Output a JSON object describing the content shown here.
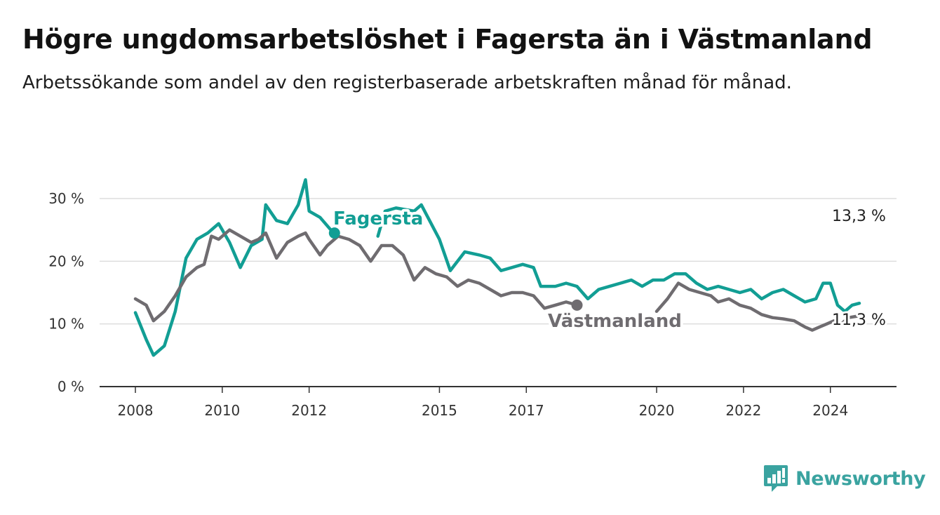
{
  "title": "Högre ungdomsarbetslöshet i Fagersta än i Västmanland",
  "subtitle": "Arbetssökande som andel av den registerbaserade arbetskraften månad för månad.",
  "brand": {
    "name": "Newsworthy",
    "icon": "newsworthy-logo-icon",
    "color": "#3aa3a0"
  },
  "chart_data": {
    "type": "line",
    "x_ticks": [
      "2008",
      "2010",
      "2012",
      "2015",
      "2017",
      "2020",
      "2022",
      "2024"
    ],
    "y_ticks": [
      "0 %",
      "10 %",
      "20 %",
      "30 %"
    ],
    "ylim": [
      0,
      30
    ],
    "xlim": [
      "2008-01",
      "2024-09"
    ],
    "grid": true,
    "legend": "inline labels",
    "series": [
      {
        "name": "Fagersta",
        "color": "#129e94",
        "end_label": "13,3 %",
        "points": [
          [
            "2008-01",
            11.8
          ],
          [
            "2008-04",
            7.5
          ],
          [
            "2008-06",
            5.0
          ],
          [
            "2008-09",
            6.5
          ],
          [
            "2008-12",
            12.0
          ],
          [
            "2009-03",
            20.5
          ],
          [
            "2009-06",
            23.5
          ],
          [
            "2009-09",
            24.5
          ],
          [
            "2009-12",
            26.0
          ],
          [
            "2010-03",
            23.0
          ],
          [
            "2010-06",
            19.0
          ],
          [
            "2010-09",
            22.5
          ],
          [
            "2010-12",
            23.5
          ],
          [
            "2011-01",
            29.0
          ],
          [
            "2011-04",
            26.5
          ],
          [
            "2011-07",
            26.0
          ],
          [
            "2011-10",
            29.0
          ],
          [
            "2011-12",
            33.0
          ],
          [
            "2012-01",
            28.0
          ],
          [
            "2012-04",
            27.0
          ],
          [
            "2012-07",
            25.0
          ],
          [
            "2012-08",
            24.5
          ]
        ]
      },
      {
        "name": "Fagersta",
        "color": "#129e94",
        "points": [
          [
            "2013-08",
            24.0
          ],
          [
            "2013-10",
            28.0
          ],
          [
            "2014-01",
            28.5
          ],
          [
            "2014-06",
            28.0
          ],
          [
            "2014-08",
            29.0
          ],
          [
            "2015-01",
            23.5
          ],
          [
            "2015-04",
            18.5
          ],
          [
            "2015-08",
            21.5
          ],
          [
            "2015-12",
            21.0
          ],
          [
            "2016-03",
            20.5
          ],
          [
            "2016-06",
            18.5
          ],
          [
            "2016-09",
            19.0
          ],
          [
            "2016-12",
            19.5
          ],
          [
            "2017-03",
            19.0
          ],
          [
            "2017-05",
            16.0
          ],
          [
            "2017-09",
            16.0
          ],
          [
            "2017-12",
            16.5
          ],
          [
            "2018-03",
            16.0
          ],
          [
            "2018-06",
            14.0
          ],
          [
            "2018-09",
            15.5
          ],
          [
            "2018-12",
            16.0
          ],
          [
            "2019-03",
            16.5
          ],
          [
            "2019-06",
            17.0
          ],
          [
            "2019-09",
            16.0
          ],
          [
            "2019-12",
            17.0
          ],
          [
            "2020-03",
            17.0
          ],
          [
            "2020-06",
            18.0
          ],
          [
            "2020-09",
            18.0
          ],
          [
            "2020-12",
            16.5
          ],
          [
            "2021-03",
            15.5
          ],
          [
            "2021-06",
            16.0
          ],
          [
            "2021-09",
            15.5
          ],
          [
            "2021-12",
            15.0
          ],
          [
            "2022-03",
            15.5
          ],
          [
            "2022-06",
            14.0
          ],
          [
            "2022-09",
            15.0
          ],
          [
            "2022-12",
            15.5
          ],
          [
            "2023-03",
            14.5
          ],
          [
            "2023-06",
            13.5
          ],
          [
            "2023-09",
            14.0
          ],
          [
            "2023-11",
            16.5
          ],
          [
            "2024-01",
            16.5
          ],
          [
            "2024-03",
            13.0
          ],
          [
            "2024-05",
            12.0
          ],
          [
            "2024-07",
            13.0
          ],
          [
            "2024-09",
            13.3
          ]
        ]
      },
      {
        "name": "Västmanland",
        "color": "#6f6c70",
        "end_label": "11,3 %",
        "points": [
          [
            "2008-01",
            14.0
          ],
          [
            "2008-04",
            13.0
          ],
          [
            "2008-06",
            10.5
          ],
          [
            "2008-09",
            12.0
          ],
          [
            "2008-12",
            14.5
          ],
          [
            "2009-03",
            17.5
          ],
          [
            "2009-06",
            19.0
          ],
          [
            "2009-08",
            19.5
          ],
          [
            "2009-10",
            24.0
          ],
          [
            "2009-12",
            23.5
          ],
          [
            "2010-03",
            25.0
          ],
          [
            "2010-06",
            24.0
          ],
          [
            "2010-09",
            23.0
          ],
          [
            "2010-11",
            23.5
          ],
          [
            "2011-01",
            24.5
          ],
          [
            "2011-04",
            20.5
          ],
          [
            "2011-07",
            23.0
          ],
          [
            "2011-10",
            24.0
          ],
          [
            "2011-12",
            24.5
          ],
          [
            "2012-01",
            23.5
          ],
          [
            "2012-04",
            21.0
          ],
          [
            "2012-06",
            22.5
          ],
          [
            "2012-09",
            24.0
          ],
          [
            "2012-12",
            23.5
          ],
          [
            "2013-03",
            22.5
          ],
          [
            "2013-06",
            20.0
          ],
          [
            "2013-09",
            22.5
          ],
          [
            "2013-12",
            22.5
          ],
          [
            "2014-03",
            21.0
          ],
          [
            "2014-06",
            17.0
          ],
          [
            "2014-09",
            19.0
          ],
          [
            "2014-12",
            18.0
          ],
          [
            "2015-03",
            17.5
          ],
          [
            "2015-06",
            16.0
          ],
          [
            "2015-09",
            17.0
          ],
          [
            "2015-12",
            16.5
          ],
          [
            "2016-03",
            15.5
          ],
          [
            "2016-06",
            14.5
          ],
          [
            "2016-09",
            15.0
          ],
          [
            "2016-12",
            15.0
          ],
          [
            "2017-03",
            14.5
          ],
          [
            "2017-06",
            12.5
          ],
          [
            "2017-09",
            13.0
          ],
          [
            "2017-12",
            13.5
          ],
          [
            "2018-03",
            13.0
          ]
        ]
      },
      {
        "name": "Västmanland",
        "color": "#6f6c70",
        "points": [
          [
            "2020-01",
            12.0
          ],
          [
            "2020-04",
            14.0
          ],
          [
            "2020-07",
            16.5
          ],
          [
            "2020-10",
            15.5
          ],
          [
            "2021-01",
            15.0
          ],
          [
            "2021-04",
            14.5
          ],
          [
            "2021-06",
            13.5
          ],
          [
            "2021-09",
            14.0
          ],
          [
            "2021-12",
            13.0
          ],
          [
            "2022-03",
            12.5
          ],
          [
            "2022-06",
            11.5
          ],
          [
            "2022-09",
            11.0
          ],
          [
            "2022-12",
            10.8
          ],
          [
            "2023-03",
            10.5
          ],
          [
            "2023-06",
            9.5
          ],
          [
            "2023-08",
            9.0
          ],
          [
            "2023-10",
            9.5
          ],
          [
            "2023-12",
            10.0
          ],
          [
            "2024-02",
            10.5
          ],
          [
            "2024-04",
            10.0
          ],
          [
            "2024-06",
            11.0
          ],
          [
            "2024-09",
            11.3
          ]
        ]
      }
    ]
  }
}
